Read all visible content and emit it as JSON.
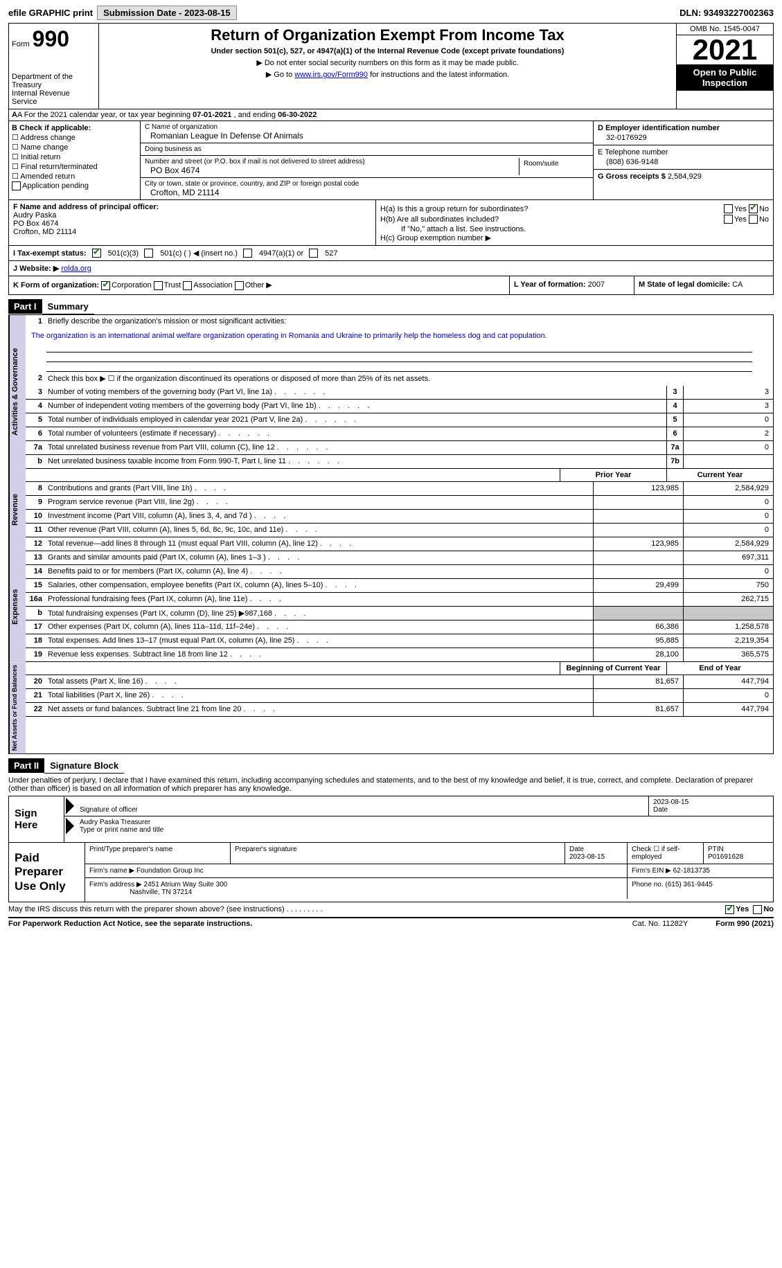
{
  "topbar": {
    "efile": "efile GRAPHIC print",
    "submission": "Submission Date - 2023-08-15",
    "dln": "DLN: 93493227002363"
  },
  "header": {
    "form_label": "Form",
    "form_no": "990",
    "title": "Return of Organization Exempt From Income Tax",
    "subtitle": "Under section 501(c), 527, or 4947(a)(1) of the Internal Revenue Code (except private foundations)",
    "note1": "▶ Do not enter social security numbers on this form as it may be made public.",
    "note2_pre": "▶ Go to ",
    "note2_link": "www.irs.gov/Form990",
    "note2_post": " for instructions and the latest information.",
    "dept": "Department of the Treasury\nInternal Revenue Service",
    "omb": "OMB No. 1545-0047",
    "year": "2021",
    "open": "Open to Public Inspection"
  },
  "line_a": {
    "text_pre": "A For the 2021 calendar year, or tax year beginning ",
    "begin": "07-01-2021",
    "mid": " , and ending ",
    "end": "06-30-2022"
  },
  "section_b": {
    "label": "B Check if applicable:",
    "items": [
      "☐ Address change",
      "☐ Name change",
      "☐ Initial return",
      "☐ Final return/terminated",
      "☐ Amended return",
      "Application pending"
    ]
  },
  "section_c": {
    "name_label": "C Name of organization",
    "name": "Romanian League In Defense Of Animals",
    "dba_label": "Doing business as",
    "dba": "",
    "addr_label": "Number and street (or P.O. box if mail is not delivered to street address)",
    "addr": "PO Box 4674",
    "room_label": "Room/suite",
    "city_label": "City or town, state or province, country, and ZIP or foreign postal code",
    "city": "Crofton, MD  21114"
  },
  "section_d": {
    "ein_label": "D Employer identification number",
    "ein": "32-0176929",
    "phone_label": "E Telephone number",
    "phone": "(808) 636-9148",
    "gross_label": "G Gross receipts $",
    "gross": "2,584,929"
  },
  "section_f": {
    "label": "F  Name and address of principal officer:",
    "name": "Audry Paska",
    "addr1": "PO Box 4674",
    "addr2": "Crofton, MD  21114"
  },
  "section_h": {
    "ha": "H(a)  Is this a group return for subordinates?",
    "hb": "H(b)  Are all subordinates included?",
    "hb_note": "If \"No,\" attach a list. See instructions.",
    "hc": "H(c)  Group exemption number ▶",
    "yes": "Yes",
    "no": "No"
  },
  "section_i": {
    "label": "I   Tax-exempt status:",
    "opt1": "501(c)(3)",
    "opt2": "501(c) (  ) ◀ (insert no.)",
    "opt3": "4947(a)(1) or",
    "opt4": "527"
  },
  "section_j": {
    "label": "J   Website: ▶",
    "url": "rolda.org"
  },
  "section_k": {
    "label": "K Form of organization:",
    "opts": [
      "Corporation",
      "Trust",
      "Association",
      "Other ▶"
    ]
  },
  "section_l": {
    "label": "L Year of formation:",
    "val": "2007"
  },
  "section_m": {
    "label": "M State of legal domicile:",
    "val": "CA"
  },
  "part1": {
    "tag": "Part I",
    "title": "Summary"
  },
  "summary": {
    "mission_label": "Briefly describe the organization's mission or most significant activities:",
    "mission": "The organization is an international animal welfare organization operating in Romania and Ukraine to primarily help the homeless dog and cat population.",
    "line2": "Check this box ▶ ☐  if the organization discontinued its operations or disposed of more than 25% of its net assets.",
    "gov_label": "Activities & Governance",
    "rev_label": "Revenue",
    "exp_label": "Expenses",
    "net_label": "Net Assets or Fund Balances",
    "prior_year": "Prior Year",
    "current_year": "Current Year",
    "begin_year": "Beginning of Current Year",
    "end_year": "End of Year",
    "rows_gov": [
      {
        "n": "3",
        "d": "Number of voting members of the governing body (Part VI, line 1a)",
        "box": "3",
        "v": "3"
      },
      {
        "n": "4",
        "d": "Number of independent voting members of the governing body (Part VI, line 1b)",
        "box": "4",
        "v": "3"
      },
      {
        "n": "5",
        "d": "Total number of individuals employed in calendar year 2021 (Part V, line 2a)",
        "box": "5",
        "v": "0"
      },
      {
        "n": "6",
        "d": "Total number of volunteers (estimate if necessary)",
        "box": "6",
        "v": "2"
      },
      {
        "n": "7a",
        "d": "Total unrelated business revenue from Part VIII, column (C), line 12",
        "box": "7a",
        "v": "0"
      },
      {
        "n": "b",
        "d": "Net unrelated business taxable income from Form 990-T, Part I, line 11",
        "box": "7b",
        "v": ""
      }
    ],
    "rows_rev": [
      {
        "n": "8",
        "d": "Contributions and grants (Part VIII, line 1h)",
        "p": "123,985",
        "c": "2,584,929"
      },
      {
        "n": "9",
        "d": "Program service revenue (Part VIII, line 2g)",
        "p": "",
        "c": "0"
      },
      {
        "n": "10",
        "d": "Investment income (Part VIII, column (A), lines 3, 4, and 7d )",
        "p": "",
        "c": "0"
      },
      {
        "n": "11",
        "d": "Other revenue (Part VIII, column (A), lines 5, 6d, 8c, 9c, 10c, and 11e)",
        "p": "",
        "c": "0"
      },
      {
        "n": "12",
        "d": "Total revenue—add lines 8 through 11 (must equal Part VIII, column (A), line 12)",
        "p": "123,985",
        "c": "2,584,929"
      }
    ],
    "rows_exp": [
      {
        "n": "13",
        "d": "Grants and similar amounts paid (Part IX, column (A), lines 1–3 )",
        "p": "",
        "c": "697,311"
      },
      {
        "n": "14",
        "d": "Benefits paid to or for members (Part IX, column (A), line 4)",
        "p": "",
        "c": "0"
      },
      {
        "n": "15",
        "d": "Salaries, other compensation, employee benefits (Part IX, column (A), lines 5–10)",
        "p": "29,499",
        "c": "750"
      },
      {
        "n": "16a",
        "d": "Professional fundraising fees (Part IX, column (A), line 11e)",
        "p": "",
        "c": "262,715"
      },
      {
        "n": "b",
        "d": "Total fundraising expenses (Part IX, column (D), line 25) ▶987,168",
        "p": "shade",
        "c": "shade"
      },
      {
        "n": "17",
        "d": "Other expenses (Part IX, column (A), lines 11a–11d, 11f–24e)",
        "p": "66,386",
        "c": "1,258,578"
      },
      {
        "n": "18",
        "d": "Total expenses. Add lines 13–17 (must equal Part IX, column (A), line 25)",
        "p": "95,885",
        "c": "2,219,354"
      },
      {
        "n": "19",
        "d": "Revenue less expenses. Subtract line 18 from line 12",
        "p": "28,100",
        "c": "365,575"
      }
    ],
    "rows_net": [
      {
        "n": "20",
        "d": "Total assets (Part X, line 16)",
        "p": "81,657",
        "c": "447,794"
      },
      {
        "n": "21",
        "d": "Total liabilities (Part X, line 26)",
        "p": "",
        "c": "0"
      },
      {
        "n": "22",
        "d": "Net assets or fund balances. Subtract line 21 from line 20",
        "p": "81,657",
        "c": "447,794"
      }
    ]
  },
  "part2": {
    "tag": "Part II",
    "title": "Signature Block"
  },
  "sig": {
    "perjury": "Under penalties of perjury, I declare that I have examined this return, including accompanying schedules and statements, and to the best of my knowledge and belief, it is true, correct, and complete. Declaration of preparer (other than officer) is based on all information of which preparer has any knowledge.",
    "sign_here": "Sign Here",
    "sig_officer": "Signature of officer",
    "sig_date": "2023-08-15",
    "date_label": "Date",
    "name_title": "Audry Paska  Treasurer",
    "type_label": "Type or print name and title"
  },
  "prep": {
    "label": "Paid Preparer Use Only",
    "print_label": "Print/Type preparer's name",
    "print_name": "",
    "sig_label": "Preparer's signature",
    "date_label": "Date",
    "date": "2023-08-15",
    "check_label": "Check ☐ if self-employed",
    "ptin_label": "PTIN",
    "ptin": "P01691628",
    "firm_name_label": "Firm's name      ▶",
    "firm_name": "Foundation Group Inc",
    "firm_ein_label": "Firm's EIN ▶",
    "firm_ein": "62-1813735",
    "firm_addr_label": "Firm's address ▶",
    "firm_addr1": "2451 Atrium Way Suite 300",
    "firm_addr2": "Nashville, TN  37214",
    "phone_label": "Phone no.",
    "phone": "(615) 361-9445"
  },
  "footer": {
    "discuss": "May the IRS discuss this return with the preparer shown above? (see instructions)",
    "yes": "Yes",
    "no": "No",
    "paperwork": "For Paperwork Reduction Act Notice, see the separate instructions.",
    "cat": "Cat. No. 11282Y",
    "form": "Form 990 (2021)"
  }
}
